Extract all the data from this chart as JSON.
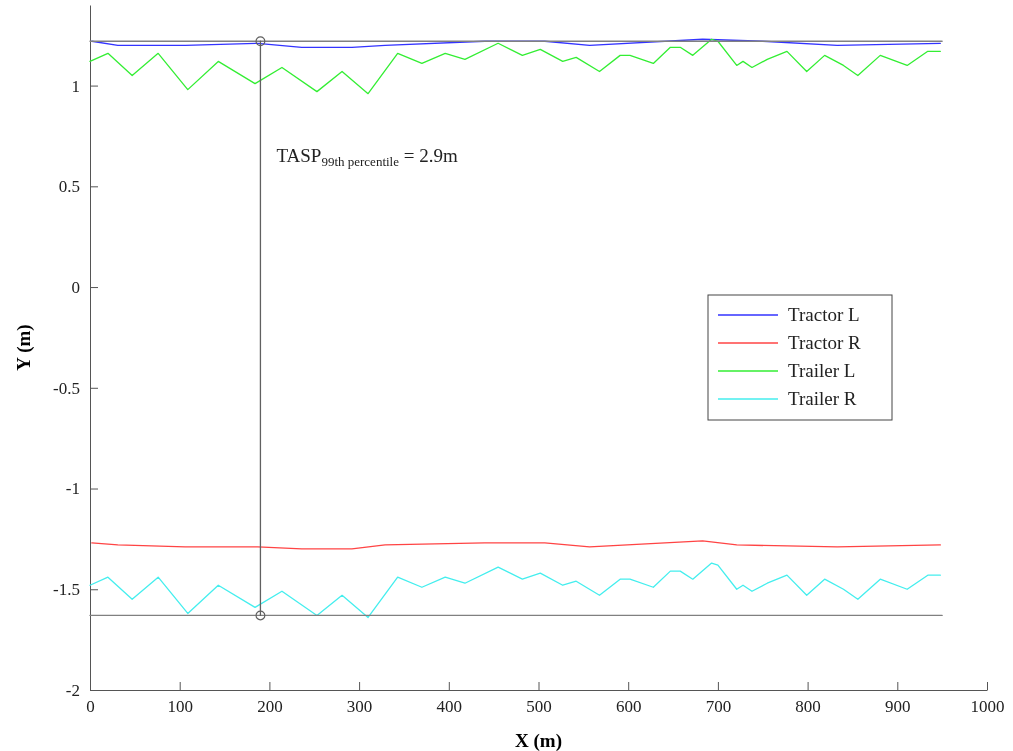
{
  "chart_data": {
    "type": "line",
    "xlabel": "X (m)",
    "ylabel": "Y (m)",
    "xlim": [
      0,
      1000
    ],
    "xticks": [
      0,
      100,
      200,
      300,
      400,
      500,
      600,
      700,
      800,
      900,
      1000
    ],
    "ylim": [
      -2,
      1.4
    ],
    "yticks": [
      -2,
      -1.5,
      -1,
      -0.5,
      0,
      0.5,
      1
    ],
    "grid": false,
    "legend": "right",
    "marker": "none",
    "line_style": "solid",
    "annotations": [
      {
        "text": "TASP$_{99th percentile}$ = 2.9m",
        "x": 190,
        "y": 0.62
      }
    ],
    "series": [
      {
        "name": "Tractor L",
        "color": "#3333ff",
        "x": [
          2,
          31,
          106,
          187,
          236,
          292,
          329,
          440,
          491,
          507,
          557,
          683,
          750,
          833,
          948
        ],
        "values": [
          1.22,
          1.2,
          1.2,
          1.21,
          1.19,
          1.19,
          1.2,
          1.22,
          1.22,
          1.22,
          1.2,
          1.23,
          1.22,
          1.2,
          1.21
        ]
      },
      {
        "name": "Tractor R",
        "color": "#ff4444",
        "x": [
          2,
          31,
          106,
          187,
          236,
          292,
          329,
          440,
          507,
          557,
          683,
          721,
          833,
          948
        ],
        "values": [
          -1.27,
          -1.28,
          -1.29,
          -1.29,
          -1.3,
          -1.3,
          -1.28,
          -1.27,
          -1.27,
          -1.29,
          -1.26,
          -1.28,
          -1.29,
          -1.28
        ]
      },
      {
        "name": "Trailer L",
        "color": "#33ee33",
        "x": [
          0,
          20,
          47,
          76,
          109,
          143,
          184,
          214,
          253,
          281,
          310,
          343,
          370,
          396,
          418,
          455,
          482,
          502,
          527,
          542,
          568,
          591,
          602,
          628,
          647,
          658,
          672,
          693,
          700,
          721,
          728,
          738,
          755,
          777,
          799,
          819,
          840,
          856,
          881,
          911,
          934,
          948
        ],
        "values": [
          1.12,
          1.16,
          1.05,
          1.16,
          0.98,
          1.12,
          1.01,
          1.09,
          0.97,
          1.07,
          0.96,
          1.16,
          1.11,
          1.16,
          1.13,
          1.21,
          1.15,
          1.18,
          1.12,
          1.14,
          1.07,
          1.15,
          1.15,
          1.11,
          1.19,
          1.19,
          1.15,
          1.23,
          1.22,
          1.1,
          1.12,
          1.09,
          1.13,
          1.17,
          1.07,
          1.15,
          1.1,
          1.05,
          1.15,
          1.1,
          1.17,
          1.17
        ]
      },
      {
        "name": "Trailer R",
        "color": "#44eeee",
        "x": [
          0,
          20,
          47,
          76,
          109,
          143,
          184,
          214,
          253,
          281,
          310,
          343,
          370,
          396,
          418,
          455,
          482,
          502,
          527,
          542,
          568,
          591,
          602,
          628,
          647,
          658,
          672,
          693,
          700,
          721,
          728,
          738,
          755,
          777,
          799,
          819,
          840,
          856,
          881,
          911,
          934,
          948
        ],
        "values": [
          -1.48,
          -1.44,
          -1.55,
          -1.44,
          -1.62,
          -1.48,
          -1.59,
          -1.51,
          -1.63,
          -1.53,
          -1.64,
          -1.44,
          -1.49,
          -1.44,
          -1.47,
          -1.39,
          -1.45,
          -1.42,
          -1.48,
          -1.46,
          -1.53,
          -1.45,
          -1.45,
          -1.49,
          -1.41,
          -1.41,
          -1.45,
          -1.37,
          -1.38,
          -1.5,
          -1.48,
          -1.51,
          -1.47,
          -1.43,
          -1.53,
          -1.45,
          -1.5,
          -1.55,
          -1.45,
          -1.5,
          -1.43,
          -1.43
        ]
      },
      {
        "type": "line",
        "color": "#808080",
        "x": [
          0,
          950
        ],
        "values": [
          1.22,
          1.22
        ]
      },
      {
        "type": "line",
        "color": "#808080",
        "x": [
          0,
          950
        ],
        "values": [
          -1.63,
          -1.63
        ]
      },
      {
        "type": "line",
        "color": "#606060",
        "x": [
          190,
          190
        ],
        "values": [
          1.22,
          -1.63
        ],
        "marker": "circle"
      }
    ]
  }
}
